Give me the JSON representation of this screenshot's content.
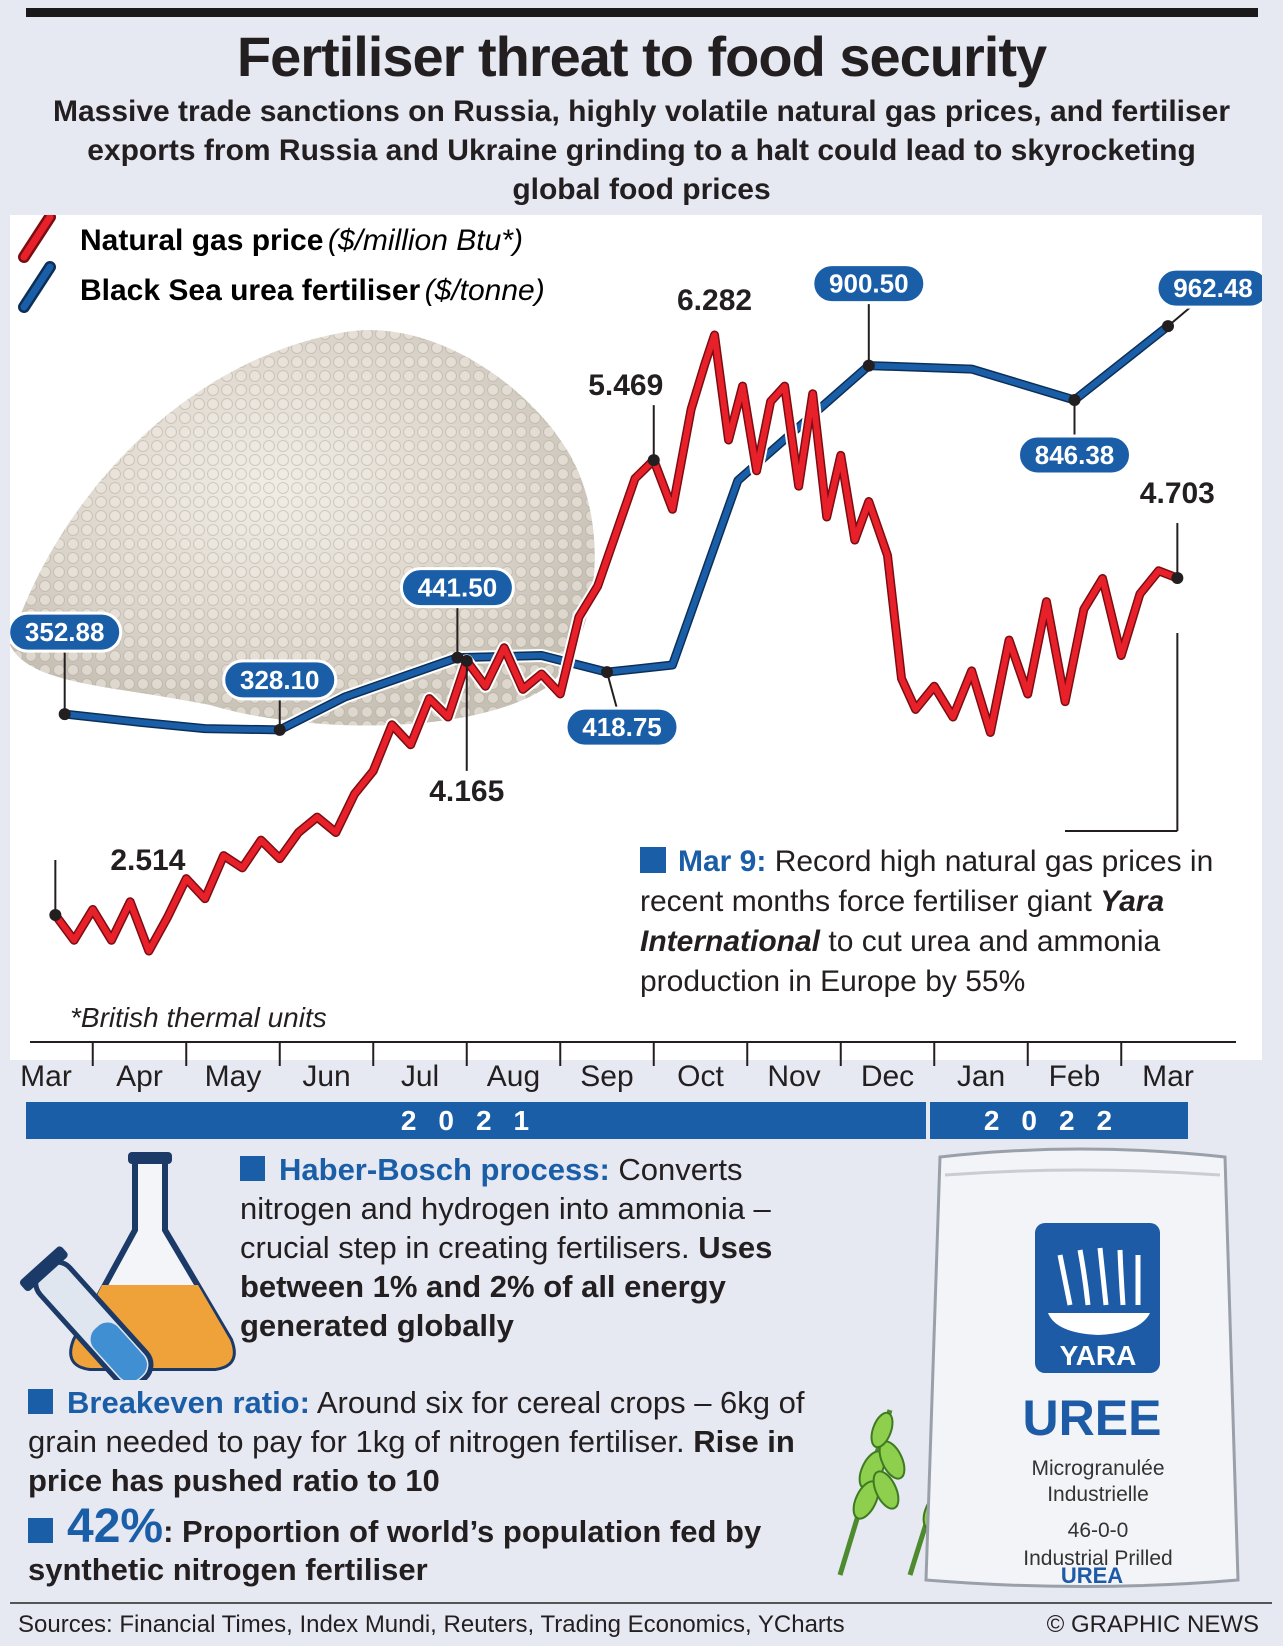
{
  "header": {
    "title": "Fertiliser threat to food security",
    "subtitle": "Massive trade sanctions on Russia, highly volatile natural gas prices, and fertiliser exports from Russia and Ukraine grinding to a halt could lead to skyrocketing global food prices"
  },
  "legend": {
    "gas_label": "Natural gas price",
    "gas_unit": "($/million Btu*)",
    "urea_label": "Black Sea urea fertiliser",
    "urea_unit": "($/tonne)"
  },
  "colors": {
    "gas": "#e8202a",
    "urea": "#1b5ea8",
    "panel": "#e6e8f2"
  },
  "chart_data": {
    "type": "line",
    "x_months": [
      "Mar",
      "Apr",
      "May",
      "Jun",
      "Jul",
      "Aug",
      "Sep",
      "Oct",
      "Nov",
      "Dec",
      "Jan",
      "Feb",
      "Mar"
    ],
    "years": [
      {
        "label": "2021"
      },
      {
        "label": "2022"
      }
    ],
    "series": [
      {
        "name": "Black Sea urea fertiliser",
        "unit": "$/tonne",
        "points": [
          [
            0.2,
            352.88
          ],
          [
            1.0,
            340
          ],
          [
            1.7,
            330
          ],
          [
            2.5,
            328.1
          ],
          [
            3.2,
            380
          ],
          [
            4.4,
            441.5
          ],
          [
            5.3,
            445
          ],
          [
            6.0,
            418.75
          ],
          [
            6.7,
            430
          ],
          [
            7.4,
            720
          ],
          [
            8.8,
            900.5
          ],
          [
            9.9,
            895
          ],
          [
            11.0,
            846.38
          ],
          [
            12.0,
            962.48
          ]
        ]
      },
      {
        "name": "Natural gas price",
        "unit": "$/million Btu",
        "points": [
          [
            0.1,
            2.514
          ],
          [
            0.3,
            2.35
          ],
          [
            0.5,
            2.55
          ],
          [
            0.7,
            2.35
          ],
          [
            0.9,
            2.6
          ],
          [
            1.1,
            2.28
          ],
          [
            1.3,
            2.5
          ],
          [
            1.5,
            2.75
          ],
          [
            1.7,
            2.62
          ],
          [
            1.9,
            2.9
          ],
          [
            2.1,
            2.82
          ],
          [
            2.3,
            3.0
          ],
          [
            2.5,
            2.88
          ],
          [
            2.7,
            3.05
          ],
          [
            2.9,
            3.15
          ],
          [
            3.1,
            3.05
          ],
          [
            3.3,
            3.3
          ],
          [
            3.5,
            3.45
          ],
          [
            3.7,
            3.75
          ],
          [
            3.9,
            3.62
          ],
          [
            4.1,
            3.92
          ],
          [
            4.3,
            3.8
          ],
          [
            4.5,
            4.165
          ],
          [
            4.7,
            4.0
          ],
          [
            4.9,
            4.25
          ],
          [
            5.1,
            3.98
          ],
          [
            5.3,
            4.08
          ],
          [
            5.5,
            3.95
          ],
          [
            5.7,
            4.45
          ],
          [
            5.9,
            4.65
          ],
          [
            6.1,
            5.0
          ],
          [
            6.3,
            5.35
          ],
          [
            6.5,
            5.469
          ],
          [
            6.7,
            5.15
          ],
          [
            6.9,
            5.8
          ],
          [
            7.05,
            6.1
          ],
          [
            7.15,
            6.282
          ],
          [
            7.3,
            5.6
          ],
          [
            7.45,
            5.95
          ],
          [
            7.6,
            5.4
          ],
          [
            7.75,
            5.85
          ],
          [
            7.9,
            5.95
          ],
          [
            8.05,
            5.3
          ],
          [
            8.2,
            5.9
          ],
          [
            8.35,
            5.1
          ],
          [
            8.5,
            5.5
          ],
          [
            8.65,
            4.95
          ],
          [
            8.8,
            5.2
          ],
          [
            9.0,
            4.85
          ],
          [
            9.15,
            4.05
          ],
          [
            9.3,
            3.85
          ],
          [
            9.5,
            4.0
          ],
          [
            9.7,
            3.8
          ],
          [
            9.9,
            4.1
          ],
          [
            10.1,
            3.7
          ],
          [
            10.3,
            4.3
          ],
          [
            10.5,
            3.95
          ],
          [
            10.7,
            4.55
          ],
          [
            10.9,
            3.9
          ],
          [
            11.1,
            4.5
          ],
          [
            11.3,
            4.7
          ],
          [
            11.5,
            4.2
          ],
          [
            11.7,
            4.6
          ],
          [
            11.9,
            4.75
          ],
          [
            12.1,
            4.703
          ]
        ]
      }
    ],
    "labels": {
      "urea": [
        "352.88",
        "328.10",
        "441.50",
        "418.75",
        "900.50",
        "846.38",
        "962.48"
      ],
      "gas": [
        "2.514",
        "4.165",
        "5.469",
        "6.282",
        "4.703"
      ]
    }
  },
  "footnote": "*British thermal units",
  "annotation": {
    "date": "Mar 9:",
    "text": "Record high natural gas prices in recent months force fertiliser giant",
    "company": "Yara International",
    "text2": "to cut urea and ammonia production in Europe by 55%"
  },
  "info": {
    "haber_head": "Haber-Bosch process:",
    "haber_text": "Converts nitrogen and hydrogen into ammonia – crucial step in creating fertilisers.",
    "haber_bold": "Uses between 1% and 2% of all energy generated globally",
    "break_head": "Breakeven ratio:",
    "break_text": "Around six for cereal crops – 6kg of grain needed to pay for 1kg of nitrogen fertiliser.",
    "break_bold": "Rise in price has pushed ratio to 10",
    "pct": "42%",
    "pct_text": ": Proportion of world’s population fed by synthetic nitrogen fertiliser"
  },
  "bag": {
    "brand": "YARA",
    "product": "UREE",
    "line1": "Microgranulée",
    "line2": "Industrielle",
    "grade": "46-0-0",
    "line3": "Industrial Prilled",
    "product_en": "UREA"
  },
  "footer": {
    "sources": "Sources: Financial Times, Index Mundi, Reuters, Trading Economics, YCharts",
    "credit": "© GRAPHIC NEWS"
  }
}
